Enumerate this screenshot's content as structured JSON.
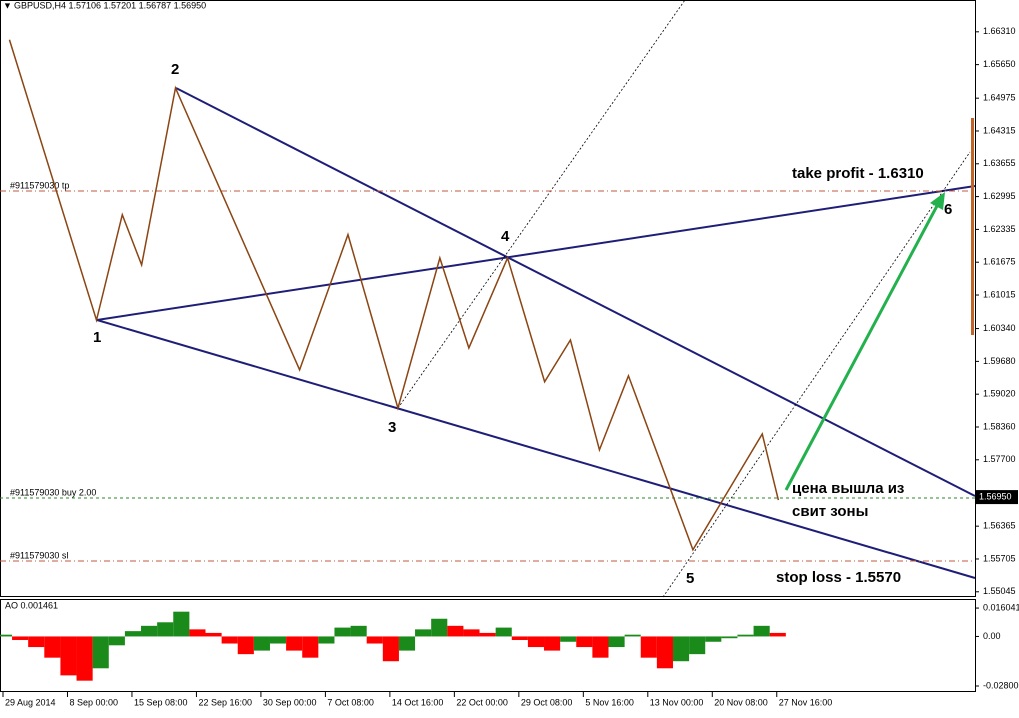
{
  "header": {
    "title": "GBPUSD,H4  1.57106 1.57201 1.56787 1.56950"
  },
  "price_axis": {
    "ylim": [
      1.5494,
      1.6695
    ],
    "ticks": [
      {
        "value": 1.6631,
        "label": "1.66310"
      },
      {
        "value": 1.6565,
        "label": "1.65650"
      },
      {
        "value": 1.64975,
        "label": "1.64975"
      },
      {
        "value": 1.64315,
        "label": "1.64315"
      },
      {
        "value": 1.63655,
        "label": "1.63655"
      },
      {
        "value": 1.62995,
        "label": "1.62995"
      },
      {
        "value": 1.62335,
        "label": "1.62335"
      },
      {
        "value": 1.61675,
        "label": "1.61675"
      },
      {
        "value": 1.61015,
        "label": "1.61015"
      },
      {
        "value": 1.6034,
        "label": "1.60340"
      },
      {
        "value": 1.5968,
        "label": "1.59680"
      },
      {
        "value": 1.5902,
        "label": "1.59020"
      },
      {
        "value": 1.5836,
        "label": "1.58360"
      },
      {
        "value": 1.577,
        "label": "1.57700"
      },
      {
        "value": 1.56365,
        "label": "1.56365"
      },
      {
        "value": 1.55705,
        "label": "1.55705"
      },
      {
        "value": 1.55045,
        "label": "1.55045"
      }
    ],
    "current": {
      "value": 1.5695,
      "label": "1.56950"
    }
  },
  "time_axis": {
    "labels": [
      "29 Aug 2014",
      "8 Sep 00:00",
      "15 Sep 08:00",
      "22 Sep 16:00",
      "30 Sep 00:00",
      "7 Oct 08:00",
      "14 Oct 16:00",
      "22 Oct 00:00",
      "29 Oct 08:00",
      "5 Nov 16:00",
      "13 Nov 00:00",
      "20 Nov 08:00",
      "27 Nov 16:00"
    ]
  },
  "zigzag": {
    "bars": [
      4,
      58,
      74,
      86,
      107,
      184,
      214,
      245,
      271,
      289,
      313,
      336,
      352,
      370,
      388,
      428,
      471,
      481
    ],
    "prices": [
      1.6615,
      1.6051,
      1.6263,
      1.6162,
      1.6518,
      1.5951,
      1.6223,
      1.5874,
      1.6176,
      1.5995,
      1.6176,
      1.5927,
      1.6011,
      1.579,
      1.5939,
      1.5589,
      1.5822,
      1.5689
    ]
  },
  "waves": [
    "1",
    "2",
    "3",
    "4",
    "5",
    "6"
  ],
  "orders": {
    "tp": "#911579030 tp",
    "buy": "#911579030 buy 2.00",
    "sl": "#911579030 sl"
  },
  "annotations": {
    "take_profit": "take profit - 1.6310",
    "exit_line1": "цена вышла из",
    "exit_line2": "свит зоны",
    "stop_loss": "stop loss - 1.5570"
  },
  "ao": {
    "label": "AO 0.001461",
    "ylim": [
      -0.0314,
      0.0206
    ],
    "ticks": [
      0.016041,
      {
        "value": 0,
        "label": "0.00"
      },
      -0.028007
    ],
    "values": [
      0.001,
      -0.002,
      -0.006,
      -0.012,
      -0.022,
      -0.025,
      -0.018,
      -0.005,
      0.003,
      0.006,
      0.008,
      0.014,
      0.004,
      0.002,
      -0.004,
      -0.01,
      -0.008,
      -0.004,
      -0.008,
      -0.012,
      -0.004,
      0.005,
      0.006,
      -0.004,
      -0.014,
      -0.008,
      0.004,
      0.01,
      0.006,
      0.004,
      0.002,
      0.005,
      -0.002,
      -0.006,
      -0.008,
      -0.003,
      -0.006,
      -0.012,
      -0.006,
      0.001,
      -0.012,
      -0.018,
      -0.014,
      -0.01,
      -0.003,
      -0.001,
      0.001,
      0.006,
      0.002
    ]
  }
}
